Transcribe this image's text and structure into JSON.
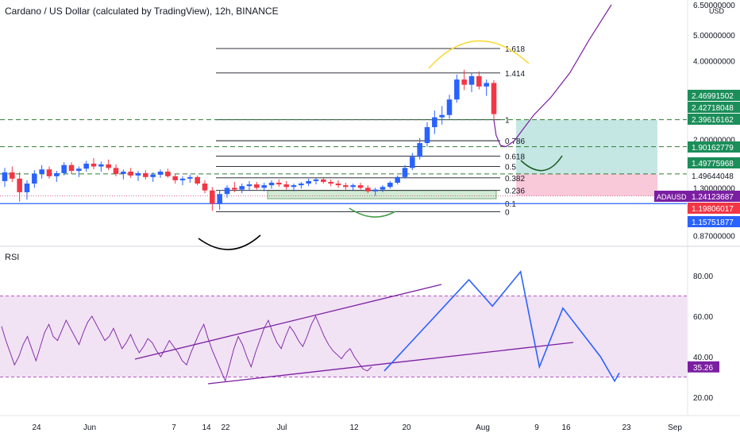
{
  "header": {
    "title": "Cardano / US Dollar (calculated by TradingView), 12h, BINANCE"
  },
  "rsi_pane": {
    "label": "RSI"
  },
  "colors": {
    "up": "#2962ff",
    "down": "#f23645",
    "accent": "#7b1fa2",
    "fib": "#131722",
    "support": "#2e7d32",
    "target_zone": "#b2dfdb",
    "stop_zone": "#f8bbd0",
    "rsi_band": "#e1bee7",
    "blue_line": "#2962ff",
    "green_label": "#1b8e5a",
    "red_label": "#f23645",
    "blue_label": "#2962ff",
    "purple_label": "#7b1fa2"
  },
  "chart_data": [
    {
      "type": "candlestick",
      "symbol": "ADAUSD",
      "title": "Cardano / US Dollar (calculated by TradingView), 12h, BINANCE",
      "currency": "USD",
      "y_scale": "log",
      "price_axis_labels": [
        "6.50000000",
        "5.00000000",
        "4.00000000",
        "2.00000000",
        "1.30000000",
        "0.87000000"
      ],
      "x_axis_labels": [
        "24",
        "Jun",
        "7",
        "14",
        "22",
        "Jul",
        "12",
        "20",
        "Aug",
        "9",
        "16",
        "23",
        "Sep"
      ],
      "fib_levels": [
        {
          "label": "1.618",
          "price": 4.45
        },
        {
          "label": "1.414",
          "price": 3.6
        },
        {
          "label": "1",
          "price": 2.4
        },
        {
          "label": "0.786",
          "price": 2.0
        },
        {
          "label": "0.618",
          "price": 1.75
        },
        {
          "label": "0.5",
          "price": 1.6
        },
        {
          "label": "0.382",
          "price": 1.45
        },
        {
          "label": "0.236",
          "price": 1.3
        },
        {
          "label": "0.1",
          "price": 1.16
        },
        {
          "label": "0",
          "price": 1.08
        }
      ],
      "price_labels": [
        {
          "value": "2.46991502",
          "kind": "green"
        },
        {
          "value": "2.42718048",
          "kind": "green"
        },
        {
          "value": "2.39616162",
          "kind": "green"
        },
        {
          "value": "1.90162779",
          "kind": "green"
        },
        {
          "value": "1.49775968",
          "kind": "green"
        },
        {
          "value": "1.49644048",
          "kind": "plain"
        },
        {
          "value": "ADAUSD",
          "kind": "tag"
        },
        {
          "value": "1.24123687",
          "kind": "purple"
        },
        {
          "value": "1.19806017",
          "kind": "red"
        },
        {
          "value": "1.15751877",
          "kind": "blue"
        }
      ],
      "candles": [
        [
          1.41,
          1.58,
          1.34,
          1.52
        ],
        [
          1.52,
          1.6,
          1.4,
          1.44
        ],
        [
          1.44,
          1.52,
          1.18,
          1.28
        ],
        [
          1.28,
          1.42,
          1.2,
          1.38
        ],
        [
          1.38,
          1.55,
          1.33,
          1.5
        ],
        [
          1.5,
          1.62,
          1.44,
          1.56
        ],
        [
          1.56,
          1.6,
          1.44,
          1.47
        ],
        [
          1.47,
          1.54,
          1.4,
          1.51
        ],
        [
          1.51,
          1.66,
          1.48,
          1.62
        ],
        [
          1.62,
          1.66,
          1.5,
          1.54
        ],
        [
          1.54,
          1.6,
          1.46,
          1.57
        ],
        [
          1.57,
          1.68,
          1.53,
          1.64
        ],
        [
          1.64,
          1.72,
          1.56,
          1.6
        ],
        [
          1.6,
          1.67,
          1.53,
          1.63
        ],
        [
          1.63,
          1.7,
          1.55,
          1.58
        ],
        [
          1.58,
          1.63,
          1.47,
          1.5
        ],
        [
          1.5,
          1.56,
          1.43,
          1.53
        ],
        [
          1.53,
          1.58,
          1.45,
          1.48
        ],
        [
          1.48,
          1.54,
          1.41,
          1.51
        ],
        [
          1.51,
          1.55,
          1.43,
          1.46
        ],
        [
          1.46,
          1.52,
          1.4,
          1.49
        ],
        [
          1.49,
          1.56,
          1.45,
          1.53
        ],
        [
          1.53,
          1.57,
          1.45,
          1.47
        ],
        [
          1.47,
          1.5,
          1.38,
          1.42
        ],
        [
          1.42,
          1.47,
          1.36,
          1.44
        ],
        [
          1.44,
          1.49,
          1.39,
          1.46
        ],
        [
          1.46,
          1.48,
          1.36,
          1.38
        ],
        [
          1.38,
          1.42,
          1.27,
          1.3
        ],
        [
          1.3,
          1.34,
          1.09,
          1.16
        ],
        [
          1.16,
          1.3,
          1.1,
          1.26
        ],
        [
          1.26,
          1.36,
          1.22,
          1.33
        ],
        [
          1.33,
          1.4,
          1.28,
          1.31
        ],
        [
          1.31,
          1.38,
          1.27,
          1.35
        ],
        [
          1.35,
          1.41,
          1.3,
          1.37
        ],
        [
          1.37,
          1.4,
          1.31,
          1.33
        ],
        [
          1.33,
          1.39,
          1.29,
          1.36
        ],
        [
          1.36,
          1.42,
          1.32,
          1.39
        ],
        [
          1.39,
          1.43,
          1.34,
          1.37
        ],
        [
          1.37,
          1.41,
          1.31,
          1.34
        ],
        [
          1.34,
          1.38,
          1.29,
          1.36
        ],
        [
          1.36,
          1.4,
          1.32,
          1.38
        ],
        [
          1.38,
          1.44,
          1.35,
          1.41
        ],
        [
          1.41,
          1.45,
          1.37,
          1.43
        ],
        [
          1.43,
          1.46,
          1.38,
          1.4
        ],
        [
          1.4,
          1.43,
          1.35,
          1.38
        ],
        [
          1.38,
          1.42,
          1.33,
          1.36
        ],
        [
          1.36,
          1.39,
          1.31,
          1.34
        ],
        [
          1.34,
          1.38,
          1.3,
          1.36
        ],
        [
          1.36,
          1.39,
          1.31,
          1.33
        ],
        [
          1.33,
          1.36,
          1.27,
          1.29
        ],
        [
          1.29,
          1.33,
          1.24,
          1.31
        ],
        [
          1.31,
          1.36,
          1.28,
          1.34
        ],
        [
          1.34,
          1.41,
          1.32,
          1.39
        ],
        [
          1.39,
          1.48,
          1.37,
          1.46
        ],
        [
          1.46,
          1.62,
          1.44,
          1.58
        ],
        [
          1.58,
          1.8,
          1.55,
          1.74
        ],
        [
          1.74,
          2.05,
          1.7,
          1.96
        ],
        [
          1.96,
          2.35,
          1.9,
          2.25
        ],
        [
          2.25,
          2.6,
          2.12,
          2.45
        ],
        [
          2.45,
          2.7,
          2.3,
          2.5
        ],
        [
          2.5,
          2.98,
          2.42,
          2.86
        ],
        [
          2.86,
          3.55,
          2.78,
          3.4
        ],
        [
          3.4,
          3.7,
          3.1,
          3.25
        ],
        [
          3.25,
          3.6,
          3.05,
          3.5
        ],
        [
          3.5,
          3.65,
          3.12,
          3.2
        ],
        [
          3.2,
          3.4,
          2.95,
          3.3
        ],
        [
          3.3,
          3.38,
          2.4,
          2.52
        ]
      ],
      "projection_path": [
        [
          2.48,
          2.4
        ],
        [
          2.52,
          2.1
        ],
        [
          2.6,
          1.92
        ],
        [
          2.7,
          1.9
        ],
        [
          2.85,
          2.0
        ],
        [
          3.0,
          2.2
        ],
        [
          3.2,
          2.5
        ],
        [
          3.5,
          2.9
        ],
        [
          3.85,
          3.6
        ],
        [
          4.2,
          4.8
        ],
        [
          4.6,
          6.5
        ]
      ],
      "rsi": {
        "axis_labels": [
          "80.00",
          "60.00",
          "40.00",
          "20.00"
        ],
        "last_value": "35.26",
        "band": [
          30,
          70
        ],
        "values": [
          55,
          48,
          42,
          36,
          40,
          46,
          50,
          44,
          38,
          45,
          52,
          56,
          50,
          48,
          53,
          58,
          54,
          50,
          46,
          52,
          57,
          60,
          56,
          52,
          48,
          50,
          54,
          49,
          44,
          47,
          51,
          46,
          42,
          45,
          49,
          47,
          43,
          40,
          44,
          48,
          45,
          42,
          38,
          36,
          42,
          47,
          52,
          56,
          49,
          43,
          38,
          33,
          28,
          36,
          44,
          50,
          46,
          40,
          35,
          42,
          48,
          54,
          58,
          52,
          47,
          44,
          50,
          55,
          52,
          48,
          45,
          50,
          56,
          60,
          55,
          50,
          46,
          43,
          41,
          39,
          42,
          44,
          40,
          37,
          34,
          33,
          35
        ],
        "projection": [
          [
            0,
            33
          ],
          [
            0.36,
            78
          ],
          [
            0.46,
            65
          ],
          [
            0.58,
            82
          ],
          [
            0.66,
            35
          ],
          [
            0.76,
            64
          ],
          [
            0.92,
            40
          ],
          [
            0.98,
            28
          ],
          [
            1.0,
            32
          ]
        ]
      }
    }
  ]
}
